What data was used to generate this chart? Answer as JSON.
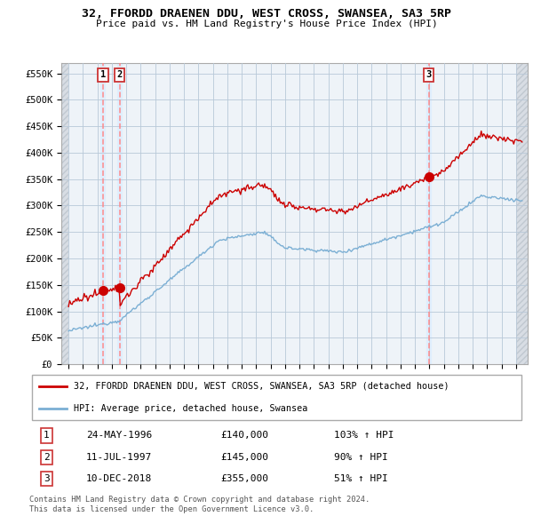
{
  "title": "32, FFORDD DRAENEN DDU, WEST CROSS, SWANSEA, SA3 5RP",
  "subtitle": "Price paid vs. HM Land Registry's House Price Index (HPI)",
  "ylabel_ticks": [
    "£0",
    "£50K",
    "£100K",
    "£150K",
    "£200K",
    "£250K",
    "£300K",
    "£350K",
    "£400K",
    "£450K",
    "£500K",
    "£550K"
  ],
  "ytick_values": [
    0,
    50000,
    100000,
    150000,
    200000,
    250000,
    300000,
    350000,
    400000,
    450000,
    500000,
    550000
  ],
  "ylim": [
    0,
    570000
  ],
  "legend_property": "32, FFORDD DRAENEN DDU, WEST CROSS, SWANSEA, SA3 5RP (detached house)",
  "legend_hpi": "HPI: Average price, detached house, Swansea",
  "sale1_date": "24-MAY-1996",
  "sale1_price": 140000,
  "sale1_pct": "103%",
  "sale2_date": "11-JUL-1997",
  "sale2_price": 145000,
  "sale2_pct": "90%",
  "sale3_date": "10-DEC-2018",
  "sale3_price": 355000,
  "sale3_pct": "51%",
  "footnote1": "Contains HM Land Registry data © Crown copyright and database right 2024.",
  "footnote2": "This data is licensed under the Open Government Licence v3.0.",
  "property_color": "#cc0000",
  "hpi_color": "#7bafd4",
  "grid_color": "#c8d8e8",
  "vline_color": "#ff8888",
  "vband_color": "#ddeeff",
  "hatch_color": "#d8d8d8",
  "sale1_t": 1996.38,
  "sale2_t": 1997.54,
  "sale3_t": 2018.95
}
